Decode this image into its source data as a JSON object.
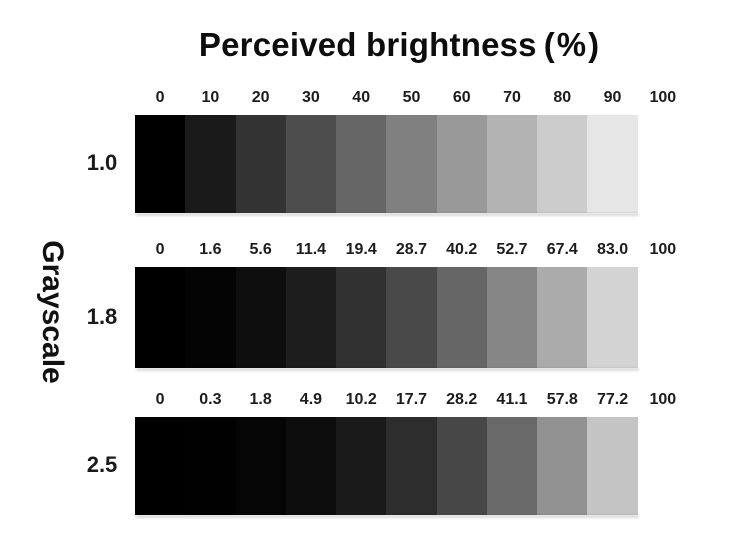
{
  "page": {
    "background": "#ffffff",
    "title_color": "#0d0d0d",
    "label_color": "#1c1c1c"
  },
  "chart_data": {
    "type": "table",
    "title": "Perceived brightness",
    "title_unit": "(%)",
    "row_axis_label": "Grayscale",
    "legend_position": "none",
    "grid": false,
    "columns_grayscale_input_percent": [
      0,
      10,
      20,
      30,
      40,
      50,
      60,
      70,
      80,
      90,
      100
    ],
    "rows": [
      {
        "gamma": "1.0",
        "tick_labels": [
          "0",
          "10",
          "20",
          "30",
          "40",
          "50",
          "60",
          "70",
          "80",
          "90",
          "100"
        ],
        "perceived_brightness_values": [
          0,
          10,
          20,
          30,
          40,
          50,
          60,
          70,
          80,
          90,
          100
        ],
        "swatch_colors": [
          "#000000",
          "#1a1a1a",
          "#333333",
          "#4d4d4d",
          "#666666",
          "#808080",
          "#999999",
          "#b3b3b3",
          "#cccccc",
          "#e6e6e6",
          "#ffffff"
        ]
      },
      {
        "gamma": "1.8",
        "tick_labels": [
          "0",
          "1.6",
          "5.6",
          "11.4",
          "19.4",
          "28.7",
          "40.2",
          "52.7",
          "67.4",
          "83.0",
          "100"
        ],
        "perceived_brightness_values": [
          0,
          1.6,
          5.6,
          11.4,
          19.4,
          28.7,
          40.2,
          52.7,
          67.4,
          83.0,
          100
        ],
        "swatch_colors": [
          "#000000",
          "#040404",
          "#0e0e0e",
          "#1d1d1d",
          "#313131",
          "#494949",
          "#666666",
          "#868686",
          "#ababab",
          "#d3d3d3",
          "#ffffff"
        ]
      },
      {
        "gamma": "2.5",
        "tick_labels": [
          "0",
          "0.3",
          "1.8",
          "4.9",
          "10.2",
          "17.7",
          "28.2",
          "41.1",
          "57.8",
          "77.2",
          "100"
        ],
        "perceived_brightness_values": [
          0,
          0.3,
          1.8,
          4.9,
          10.2,
          17.7,
          28.2,
          41.1,
          57.8,
          77.2,
          100
        ],
        "swatch_colors": [
          "#000000",
          "#010101",
          "#050505",
          "#0d0d0d",
          "#1a1a1a",
          "#2d2d2d",
          "#474747",
          "#696969",
          "#929292",
          "#c4c4c4",
          "#ffffff"
        ]
      }
    ]
  }
}
